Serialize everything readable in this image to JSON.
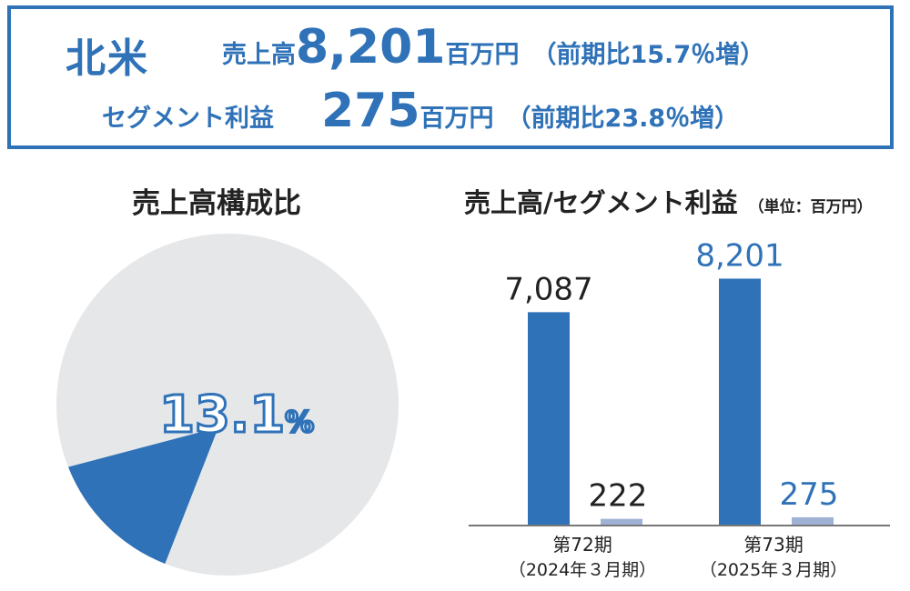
{
  "summary": {
    "region": "北米",
    "sales_label": "売上高",
    "sales_value": "8,201",
    "sales_unit": "百万円",
    "sales_yoy": "（前期比15.7％増）",
    "profit_label": "セグメント利益",
    "profit_value": "275",
    "profit_unit": "百万円",
    "profit_yoy": "（前期比23.8％増）"
  },
  "colors": {
    "accent": "#2f72b8",
    "pie_rest": "#e6e7e9",
    "profit_bar": "#9fb2d6",
    "text_dark": "#222222"
  },
  "chart_data": [
    {
      "type": "pie",
      "title": "売上高構成比",
      "slices": [
        {
          "value": 13.1,
          "label": "13.1%"
        },
        {
          "value": 86.9,
          "label": ""
        }
      ]
    },
    {
      "type": "bar",
      "title": "売上高/セグメント利益",
      "unit_note": "（単位：百万円）",
      "categories": [
        "第72期\n（2024年３月期）",
        "第73期\n（2025年３月期）"
      ],
      "series": [
        {
          "values": [
            7087,
            8201
          ],
          "labels": [
            "7,087",
            "8,201"
          ]
        },
        {
          "values": [
            222,
            275
          ],
          "labels": [
            "222",
            "275"
          ]
        }
      ],
      "ylim": [
        0,
        9000
      ]
    }
  ]
}
